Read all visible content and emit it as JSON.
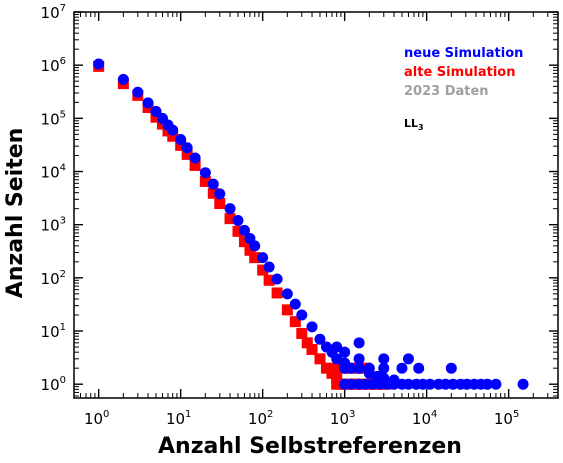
{
  "chart_data": {
    "type": "scatter",
    "title": "",
    "xlabel": "Anzahl Selbstreferenzen",
    "ylabel": "Anzahl Seiten",
    "xscale": "log",
    "yscale": "log",
    "xlim": [
      0.5,
      400000
    ],
    "ylim": [
      0.55,
      10000000
    ],
    "grid": false,
    "legend_position": "top-right",
    "xticks": [
      {
        "value": 1,
        "base": "10",
        "exp": "0"
      },
      {
        "value": 10,
        "base": "10",
        "exp": "1"
      },
      {
        "value": 100,
        "base": "10",
        "exp": "2"
      },
      {
        "value": 1000,
        "base": "10",
        "exp": "3"
      },
      {
        "value": 10000,
        "base": "10",
        "exp": "4"
      },
      {
        "value": 100000,
        "base": "10",
        "exp": "5"
      }
    ],
    "yticks": [
      {
        "value": 1,
        "base": "10",
        "exp": "0"
      },
      {
        "value": 10,
        "base": "10",
        "exp": "1"
      },
      {
        "value": 100,
        "base": "10",
        "exp": "2"
      },
      {
        "value": 1000,
        "base": "10",
        "exp": "3"
      },
      {
        "value": 10000,
        "base": "10",
        "exp": "4"
      },
      {
        "value": 100000,
        "base": "10",
        "exp": "5"
      },
      {
        "value": 1000000,
        "base": "10",
        "exp": "6"
      },
      {
        "value": 10000000,
        "base": "10",
        "exp": "7"
      }
    ],
    "series": [
      {
        "name": "alte Simulation",
        "color": "#ff0000",
        "marker": "square",
        "points": [
          [
            1,
            950000
          ],
          [
            2,
            450000
          ],
          [
            3,
            270000
          ],
          [
            4,
            160000
          ],
          [
            5,
            105000
          ],
          [
            6,
            78000
          ],
          [
            7,
            58000
          ],
          [
            8,
            46000
          ],
          [
            10,
            31000
          ],
          [
            12,
            21000
          ],
          [
            15,
            13000
          ],
          [
            20,
            6500
          ],
          [
            25,
            3900
          ],
          [
            30,
            2500
          ],
          [
            40,
            1300
          ],
          [
            50,
            750
          ],
          [
            60,
            480
          ],
          [
            70,
            330
          ],
          [
            80,
            240
          ],
          [
            100,
            140
          ],
          [
            120,
            90
          ],
          [
            150,
            52
          ],
          [
            200,
            25
          ],
          [
            250,
            15
          ],
          [
            300,
            9
          ],
          [
            350,
            6
          ],
          [
            400,
            4.5
          ],
          [
            500,
            3
          ],
          [
            600,
            2
          ],
          [
            700,
            1.6
          ],
          [
            800,
            1.3
          ],
          [
            800,
            1
          ],
          [
            900,
            1
          ],
          [
            1000,
            1
          ],
          [
            1100,
            1
          ],
          [
            1300,
            1
          ],
          [
            1500,
            1
          ],
          [
            1700,
            1
          ],
          [
            2000,
            1
          ],
          [
            2300,
            1
          ],
          [
            2700,
            1
          ],
          [
            3200,
            1
          ],
          [
            800,
            2
          ],
          [
            1000,
            2
          ],
          [
            1200,
            2
          ],
          [
            1500,
            2
          ],
          [
            1800,
            2
          ]
        ]
      },
      {
        "name": "neue Simulation",
        "color": "#0000ff",
        "marker": "circle",
        "points": [
          [
            1,
            1050000
          ],
          [
            2,
            540000
          ],
          [
            3,
            310000
          ],
          [
            4,
            195000
          ],
          [
            5,
            135000
          ],
          [
            6,
            100000
          ],
          [
            7,
            75000
          ],
          [
            8,
            60000
          ],
          [
            10,
            40000
          ],
          [
            12,
            28000
          ],
          [
            15,
            18000
          ],
          [
            20,
            9500
          ],
          [
            25,
            5800
          ],
          [
            30,
            3800
          ],
          [
            40,
            2000
          ],
          [
            50,
            1200
          ],
          [
            60,
            780
          ],
          [
            70,
            550
          ],
          [
            80,
            400
          ],
          [
            100,
            240
          ],
          [
            120,
            160
          ],
          [
            150,
            95
          ],
          [
            200,
            50
          ],
          [
            250,
            32
          ],
          [
            300,
            20
          ],
          [
            400,
            12
          ],
          [
            500,
            7
          ],
          [
            600,
            5
          ],
          [
            700,
            4
          ],
          [
            800,
            3
          ],
          [
            1000,
            2.5
          ],
          [
            1200,
            2
          ],
          [
            1500,
            2
          ],
          [
            2000,
            1.6
          ],
          [
            2500,
            1.4
          ],
          [
            3000,
            1.3
          ],
          [
            4000,
            1.2
          ],
          [
            1000,
            1
          ],
          [
            1200,
            1
          ],
          [
            1500,
            1
          ],
          [
            1800,
            1
          ],
          [
            2200,
            1
          ],
          [
            2700,
            1
          ],
          [
            3300,
            1
          ],
          [
            4000,
            1
          ],
          [
            5000,
            1
          ],
          [
            6000,
            1
          ],
          [
            7500,
            1
          ],
          [
            9000,
            1
          ],
          [
            11000,
            1
          ],
          [
            14000,
            1
          ],
          [
            17000,
            1
          ],
          [
            21000,
            1
          ],
          [
            26000,
            1
          ],
          [
            31000,
            1
          ],
          [
            38000,
            1
          ],
          [
            46000,
            1
          ],
          [
            55000,
            1
          ],
          [
            70000,
            1
          ],
          [
            150000,
            1
          ],
          [
            1000,
            2
          ],
          [
            1500,
            2
          ],
          [
            2000,
            2
          ],
          [
            3000,
            2
          ],
          [
            5000,
            2
          ],
          [
            8000,
            2
          ],
          [
            20000,
            2
          ],
          [
            1500,
            3
          ],
          [
            3000,
            3
          ],
          [
            6000,
            3
          ],
          [
            800,
            5
          ],
          [
            1000,
            4
          ],
          [
            1500,
            6
          ]
        ]
      },
      {
        "name": "2023 Daten",
        "color": "#a0a0a0",
        "marker": "circle",
        "points": []
      }
    ],
    "legend": [
      {
        "label": "neue Simulation",
        "color": "#0000ff"
      },
      {
        "label": "alte Simulation",
        "color": "#ff0000"
      },
      {
        "label": "2023 Daten",
        "color": "#a0a0a0"
      }
    ],
    "annotation": {
      "base": "LL",
      "subscript": "3"
    }
  }
}
